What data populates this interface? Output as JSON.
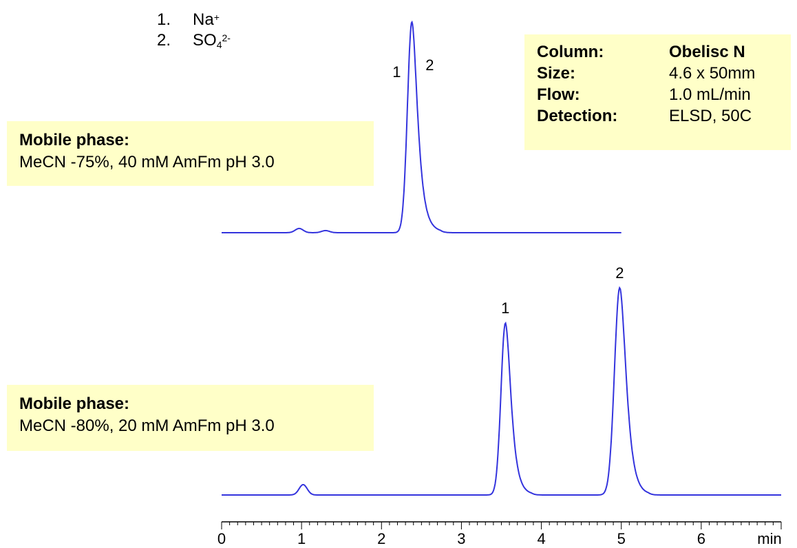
{
  "legend": [
    {
      "num": "1.",
      "name": "Na",
      "sup": "+",
      "sub": ""
    },
    {
      "num": "2.",
      "name": "SO",
      "sub": "4",
      "sup": "2-"
    }
  ],
  "info": [
    {
      "key": "Column:",
      "value": "Obelisc N",
      "bold": true
    },
    {
      "key": "Size:",
      "value": "4.6 x 50mm",
      "bold": false
    },
    {
      "key": "Flow:",
      "value": "1.0 mL/min",
      "bold": false
    },
    {
      "key": "Detection:",
      "value": "ELSD, 50C",
      "bold": false
    }
  ],
  "mobile_phase_1": {
    "title": "Mobile phase:",
    "text": "MeCN -75%, 40 mM AmFm pH 3.0"
  },
  "mobile_phase_2": {
    "title": "Mobile phase:",
    "text": "MeCN -80%, 20 mM AmFm pH 3.0"
  },
  "chart_data": {
    "type": "line",
    "xlabel": "min",
    "xlim": [
      0,
      7
    ],
    "xticks": [
      0,
      1,
      2,
      3,
      4,
      5,
      6
    ],
    "grid": false,
    "line_color": "#3333dd",
    "series": [
      {
        "x_range": [
          0,
          5.0
        ],
        "baseline": 0,
        "peaks": [
          {
            "label": "",
            "rt": 0.97,
            "height": 0.02,
            "width": 0.05
          },
          {
            "label": "",
            "rt": 1.3,
            "height": 0.01,
            "width": 0.05
          },
          {
            "label": "1",
            "label_pos": "left",
            "rt": 2.38,
            "height": 1.0,
            "width": 0.055,
            "tail": 0.12
          },
          {
            "label": "2",
            "label_pos": "right",
            "rt": 2.38,
            "height": 0,
            "width": 0.05
          }
        ]
      },
      {
        "x_range": [
          0,
          7.0
        ],
        "baseline": 0,
        "peaks": [
          {
            "label": "",
            "rt": 1.02,
            "height": 0.05,
            "width": 0.05
          },
          {
            "label": "1",
            "rt": 3.55,
            "height": 0.83,
            "width": 0.055,
            "tail": 0.11
          },
          {
            "label": "2",
            "rt": 4.98,
            "height": 1.0,
            "width": 0.065,
            "tail": 0.12
          }
        ]
      }
    ]
  }
}
